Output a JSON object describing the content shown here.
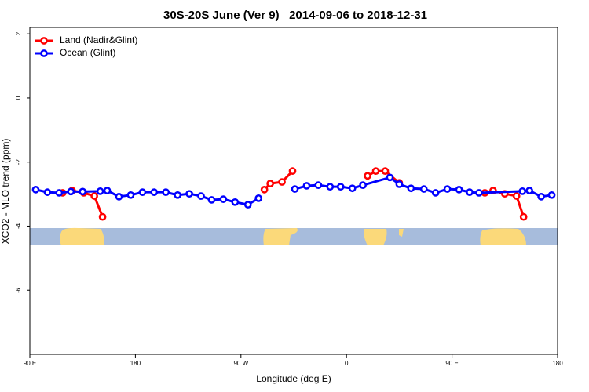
{
  "chart_data": {
    "type": "line",
    "title": "30S-20S June (Ver 9)   2014-09-06 to 2018-12-31",
    "x_label": "Longitude (deg E)",
    "y_label": "XCO2 - MLO trend (ppm)",
    "xlim": [
      90,
      540
    ],
    "xticks": [
      {
        "value": 90,
        "label": "90 E"
      },
      180,
      {
        "value": 270,
        "label": "90 W"
      },
      {
        "value": 360,
        "label": "0"
      },
      {
        "value": 450,
        "label": "90 E"
      },
      {
        "value": 540,
        "label": "180"
      }
    ],
    "ylim": [
      -8,
      2.2
    ],
    "yticks": [
      2,
      0,
      -2,
      -4,
      -6
    ],
    "legend": "top-left",
    "series": [
      {
        "name": "Land (Nadir&Glint)",
        "color": "#ff0000",
        "x": [
          118,
          126,
          136,
          145,
          152,
          null,
          290,
          295,
          305,
          314,
          null,
          378,
          385,
          393,
          405,
          null,
          478,
          485,
          495,
          505,
          511
        ],
        "values": [
          -2.96,
          -2.89,
          -2.96,
          -3.06,
          -3.71,
          null,
          -2.86,
          -2.67,
          -2.62,
          -2.28,
          null,
          -2.43,
          -2.28,
          -2.28,
          -2.65,
          null,
          -2.96,
          -2.89,
          -2.99,
          -3.06,
          -3.71
        ]
      },
      {
        "name": "Ocean (Glint)",
        "color": "#0000ff",
        "x": [
          95,
          105,
          115,
          125,
          135,
          150,
          156,
          166,
          176,
          186,
          196,
          206,
          216,
          226,
          236,
          245,
          255,
          265,
          276,
          285,
          null,
          316,
          326,
          336,
          346,
          355,
          365,
          374,
          397,
          405,
          415,
          426,
          436,
          446,
          456,
          465,
          473,
          510,
          516,
          526,
          535
        ],
        "values": [
          -2.86,
          -2.94,
          -2.96,
          -2.92,
          -2.92,
          -2.91,
          -2.89,
          -3.08,
          -3.03,
          -2.94,
          -2.94,
          -2.94,
          -3.03,
          -2.99,
          -3.06,
          -3.18,
          -3.16,
          -3.25,
          -3.33,
          -3.13,
          null,
          -2.84,
          -2.74,
          -2.72,
          -2.77,
          -2.77,
          -2.82,
          -2.72,
          -2.48,
          -2.69,
          -2.82,
          -2.84,
          -2.96,
          -2.84,
          -2.86,
          -2.94,
          -2.96,
          -2.91,
          -2.89,
          -3.08,
          -3.03
        ]
      }
    ]
  }
}
